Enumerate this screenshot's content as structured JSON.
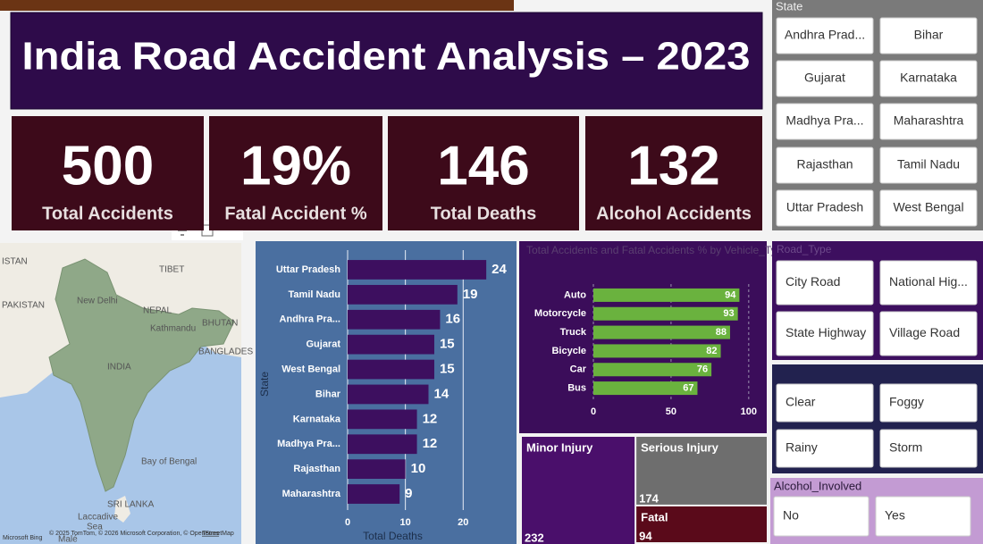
{
  "header": {
    "title": "India Road Accident Analysis – 2023"
  },
  "kpis": [
    {
      "value": "500",
      "label": "Total Accidents"
    },
    {
      "value": "19%",
      "label": "Fatal Accident %"
    },
    {
      "value": "146",
      "label": "Total Deaths"
    },
    {
      "value": "132",
      "label": "Alcohol Accidents"
    }
  ],
  "slicers": {
    "state": {
      "title": "State",
      "options": [
        "Andhra Prad...",
        "Bihar",
        "Gujarat",
        "Karnataka",
        "Madhya Pra...",
        "Maharashtra",
        "Rajasthan",
        "Tamil Nadu",
        "Uttar Pradesh",
        "West Bengal"
      ]
    },
    "road_type": {
      "title": "Road_Type",
      "options": [
        "City Road",
        "National Hig...",
        "State Highway",
        "Village Road"
      ]
    },
    "weather": {
      "options": [
        "Clear",
        "Foggy",
        "Rainy",
        "Storm"
      ]
    },
    "alcohol": {
      "title": "Alcohol_Involved",
      "options": [
        "No",
        "Yes"
      ]
    }
  },
  "map": {
    "labels": [
      "ISTAN",
      "TIBET",
      "PAKISTAN",
      "New Delhi",
      "NEPAL",
      "Kathmandu",
      "BHUTAN",
      "INDIA",
      "BANGLADES",
      "Bay of Bengal",
      "SRI LANKA",
      "Laccadive",
      "Sea",
      "Malé"
    ],
    "attribution": "© 2025 TomTom, © 2026 Microsoft Corporation, © OpenStreetMap",
    "terms": "Terms",
    "logo": "Microsoft Bing"
  },
  "chart_data": [
    {
      "type": "bar",
      "categories": [
        "Uttar Pradesh",
        "Tamil Nadu",
        "Andhra Pra...",
        "Gujarat",
        "West Bengal",
        "Bihar",
        "Karnataka",
        "Madhya Pra...",
        "Rajasthan",
        "Maharashtra"
      ],
      "values": [
        24,
        19,
        16,
        15,
        15,
        14,
        12,
        12,
        10,
        9
      ],
      "color": "#3d0f5f",
      "xlim": [
        0,
        28
      ],
      "xticks": [
        0,
        10,
        20
      ],
      "xlabel": "Total Deaths",
      "ylabel": "State",
      "grid": true
    },
    {
      "type": "bar",
      "title": "Total Accidents and Fatal Accidents % by Vehicle_Type",
      "categories": [
        "Auto",
        "Motorcycle",
        "Truck",
        "Bicycle",
        "Car",
        "Bus"
      ],
      "values": [
        94,
        93,
        88,
        82,
        76,
        67
      ],
      "color": "#6ab23e",
      "xlim": [
        0,
        107
      ],
      "xticks": [
        0,
        50,
        100
      ],
      "grid": true
    },
    {
      "type": "treemap",
      "categories": [
        "Minor Injury",
        "Serious Injury",
        "Fatal"
      ],
      "values": [
        232,
        174,
        94
      ],
      "colors": [
        "#4a0f6b",
        "#6e6e6e",
        "#5a0a1a"
      ]
    }
  ]
}
